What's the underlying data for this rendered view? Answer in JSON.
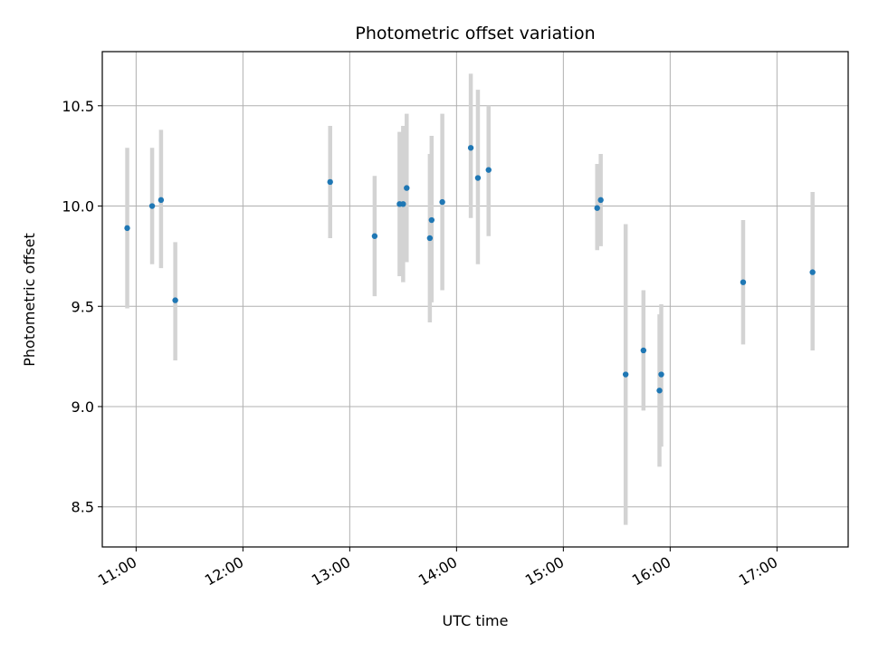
{
  "chart_data": {
    "type": "scatter",
    "title": "Photometric offset variation",
    "xlabel": "UTC time",
    "ylabel": "Photometric offset",
    "xlim": [
      "10:41",
      "17:40"
    ],
    "ylim": [
      8.3,
      10.77
    ],
    "grid": true,
    "x_ticks": [
      "11:00",
      "12:00",
      "13:00",
      "14:00",
      "15:00",
      "16:00",
      "17:00"
    ],
    "y_ticks": [
      "8.5",
      "9.0",
      "9.5",
      "10.0",
      "10.5"
    ],
    "colors": {
      "point": "#1f77b4",
      "errorbar": "#d3d3d3",
      "grid": "#b0b0b0"
    },
    "series": [
      {
        "points": [
          {
            "x": "10:55",
            "y": 9.89,
            "lo": 9.49,
            "hi": 10.29
          },
          {
            "x": "11:09",
            "y": 10.0,
            "lo": 9.71,
            "hi": 10.29
          },
          {
            "x": "11:14",
            "y": 10.03,
            "lo": 9.69,
            "hi": 10.38
          },
          {
            "x": "11:22",
            "y": 9.53,
            "lo": 9.23,
            "hi": 9.82
          },
          {
            "x": "12:49",
            "y": 10.12,
            "lo": 9.84,
            "hi": 10.4
          },
          {
            "x": "13:14",
            "y": 9.85,
            "lo": 9.55,
            "hi": 10.15
          },
          {
            "x": "13:28",
            "y": 10.01,
            "lo": 9.65,
            "hi": 10.37
          },
          {
            "x": "13:30",
            "y": 10.01,
            "lo": 9.62,
            "hi": 10.4
          },
          {
            "x": "13:32",
            "y": 10.09,
            "lo": 9.72,
            "hi": 10.46
          },
          {
            "x": "13:45",
            "y": 9.84,
            "lo": 9.42,
            "hi": 10.26
          },
          {
            "x": "13:46",
            "y": 9.93,
            "lo": 9.52,
            "hi": 10.35
          },
          {
            "x": "13:52",
            "y": 10.02,
            "lo": 9.58,
            "hi": 10.46
          },
          {
            "x": "14:08",
            "y": 10.29,
            "lo": 9.94,
            "hi": 10.66
          },
          {
            "x": "14:12",
            "y": 10.14,
            "lo": 9.71,
            "hi": 10.58
          },
          {
            "x": "14:18",
            "y": 10.18,
            "lo": 9.85,
            "hi": 10.5
          },
          {
            "x": "15:19",
            "y": 9.99,
            "lo": 9.78,
            "hi": 10.21
          },
          {
            "x": "15:21",
            "y": 10.03,
            "lo": 9.8,
            "hi": 10.26
          },
          {
            "x": "15:35",
            "y": 9.16,
            "lo": 8.41,
            "hi": 9.91
          },
          {
            "x": "15:45",
            "y": 9.28,
            "lo": 8.98,
            "hi": 9.58
          },
          {
            "x": "15:54",
            "y": 9.08,
            "lo": 8.7,
            "hi": 9.46
          },
          {
            "x": "15:55",
            "y": 9.16,
            "lo": 8.8,
            "hi": 9.51
          },
          {
            "x": "16:41",
            "y": 9.62,
            "lo": 9.31,
            "hi": 9.93
          },
          {
            "x": "17:20",
            "y": 9.67,
            "lo": 9.28,
            "hi": 10.07
          }
        ]
      }
    ]
  }
}
